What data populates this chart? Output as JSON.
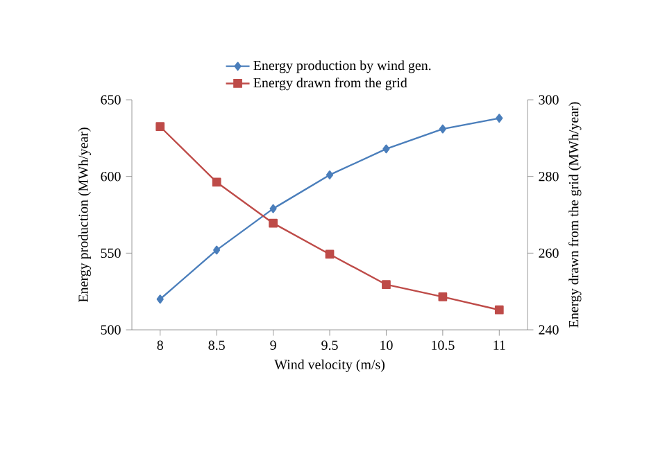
{
  "chart_data": {
    "type": "line",
    "xlabel": "Wind velocity (m/s)",
    "ylabel": "Energy production (MWh/year)",
    "y2label": "Energy drawn from the grid (MWh/year)",
    "categories": [
      "8",
      "8.5",
      "9",
      "9.5",
      "10",
      "10.5",
      "11"
    ],
    "series": [
      {
        "name": "Energy production by wind gen.",
        "color": "#4a7ebb",
        "marker": "diamond",
        "values": [
          520,
          552,
          579,
          601,
          618,
          631,
          638
        ]
      },
      {
        "name": "Energy drawn from the grid",
        "color": "#be4b48",
        "marker": "square",
        "axis": "y2",
        "values": [
          293,
          278.5,
          267.8,
          259.7,
          251.8,
          248.6,
          245.2
        ]
      }
    ],
    "ylim": [
      500,
      650
    ],
    "yticks": [
      500,
      550,
      600,
      650
    ],
    "y2lim": [
      240,
      300
    ],
    "y2ticks": [
      240,
      260,
      280,
      300
    ],
    "legend": "top",
    "grid": false,
    "line_style": "solid"
  }
}
